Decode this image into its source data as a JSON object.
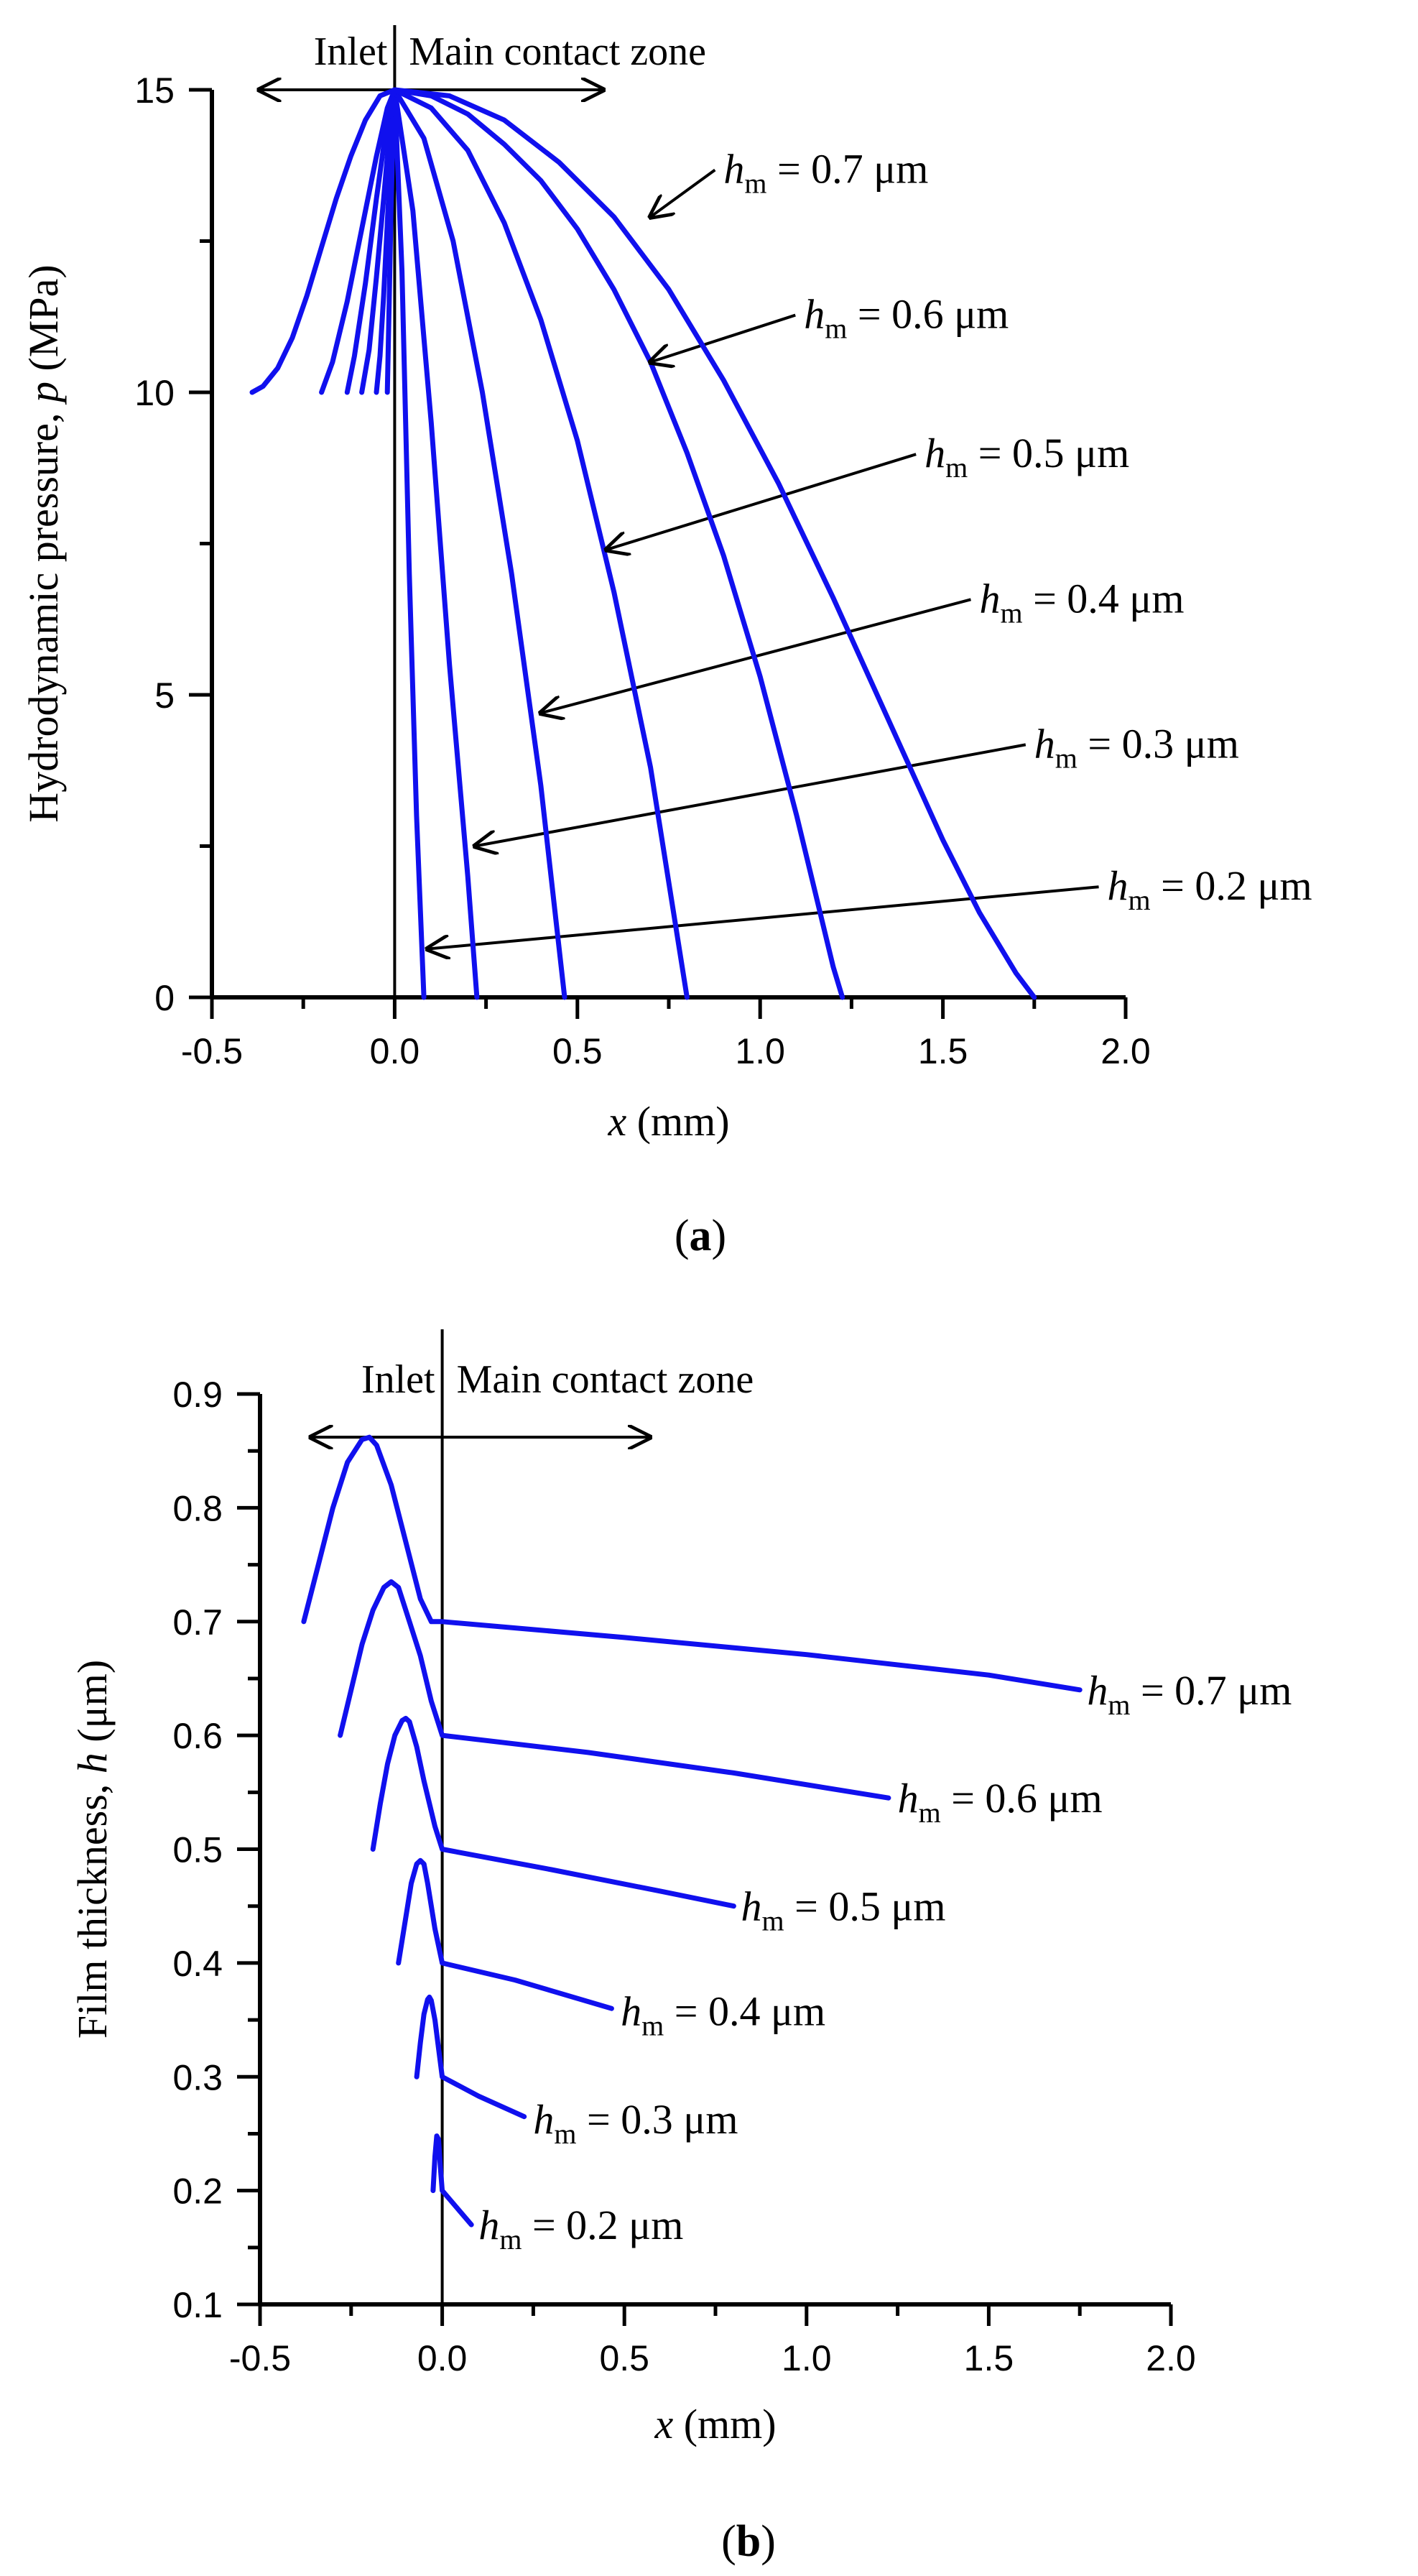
{
  "colors": {
    "series": "#1010ee",
    "axis": "#000000",
    "background": "#ffffff"
  },
  "chart_data": [
    {
      "id": "a",
      "type": "line",
      "panel_label_open": "(",
      "panel_label_letter": "a",
      "panel_label_close": ")",
      "xlabel_var": "x",
      "xlabel_unit": " (mm)",
      "ylabel_pre": "Hydrodynamic pressure, ",
      "ylabel_var": "p",
      "ylabel_unit": " (MPa)",
      "xlim": [
        -0.5,
        2.0
      ],
      "ylim": [
        0,
        15
      ],
      "xticks": [
        -0.5,
        0.0,
        0.5,
        1.0,
        1.5,
        2.0
      ],
      "xtick_labels": [
        "-0.5",
        "0.0",
        "0.5",
        "1.0",
        "1.5",
        "2.0"
      ],
      "xminor": [
        -0.25,
        0.25,
        0.75,
        1.25,
        1.75
      ],
      "yticks": [
        0,
        5,
        10,
        15
      ],
      "ytick_labels": [
        "0",
        "5",
        "10",
        "15"
      ],
      "yminor": [
        2.5,
        7.5,
        12.5
      ],
      "zone_left": "Inlet",
      "zone_right": "Main contact zone",
      "zone_arrow_x": [
        -0.37,
        0.57
      ],
      "zone_arrow_y": 15.0,
      "series": [
        {
          "name": "hm = 0.2 μm",
          "label_var": "h",
          "label_sub": "m",
          "label_rest": " = 0.2 μm",
          "x": [
            -0.02,
            -0.015,
            -0.01,
            -0.005,
            0.0,
            0.02,
            0.04,
            0.06,
            0.08
          ],
          "y": [
            10.0,
            11.5,
            13.0,
            14.2,
            15.0,
            12.0,
            7.0,
            3.0,
            0.0
          ],
          "label_at": [
            1.95,
            1.85
          ],
          "arrow_tip": [
            0.09,
            0.8
          ]
        },
        {
          "name": "hm = 0.3 μm",
          "label_var": "h",
          "label_sub": "m",
          "label_rest": " = 0.3 μm",
          "x": [
            -0.05,
            -0.04,
            -0.03,
            -0.02,
            -0.01,
            0.0,
            0.05,
            0.1,
            0.15,
            0.2,
            0.225
          ],
          "y": [
            10.0,
            10.6,
            11.6,
            12.8,
            14.0,
            15.0,
            13.0,
            9.5,
            5.5,
            2.0,
            0.0
          ],
          "label_at": [
            1.75,
            4.2
          ],
          "arrow_tip": [
            0.22,
            2.5
          ]
        },
        {
          "name": "hm = 0.4 μm",
          "label_var": "h",
          "label_sub": "m",
          "label_rest": " = 0.4 μm",
          "x": [
            -0.09,
            -0.07,
            -0.05,
            -0.03,
            -0.01,
            0.0,
            0.08,
            0.16,
            0.24,
            0.32,
            0.4,
            0.465
          ],
          "y": [
            10.0,
            10.7,
            11.9,
            13.2,
            14.6,
            15.0,
            14.2,
            12.5,
            10.0,
            7.0,
            3.5,
            0.0
          ],
          "label_at": [
            1.6,
            6.6
          ],
          "arrow_tip": [
            0.4,
            4.7
          ]
        },
        {
          "name": "hm = 0.5 μm",
          "label_var": "h",
          "label_sub": "m",
          "label_rest": " = 0.5 μm",
          "x": [
            -0.13,
            -0.11,
            -0.08,
            -0.05,
            -0.02,
            0.0,
            0.1,
            0.2,
            0.3,
            0.4,
            0.5,
            0.6,
            0.7,
            0.8
          ],
          "y": [
            10.0,
            10.6,
            11.8,
            13.2,
            14.5,
            15.0,
            14.7,
            14.0,
            12.8,
            11.2,
            9.2,
            6.7,
            3.8,
            0.0
          ],
          "label_at": [
            1.45,
            9.0
          ],
          "arrow_tip": [
            0.58,
            7.4
          ]
        },
        {
          "name": "hm = 0.6 μm",
          "label_var": "h",
          "label_sub": "m",
          "label_rest": " = 0.6 μm",
          "x": [
            -0.2,
            -0.17,
            -0.13,
            -0.09,
            -0.05,
            -0.02,
            0.0,
            0.1,
            0.2,
            0.3,
            0.4,
            0.5,
            0.6,
            0.7,
            0.8,
            0.9,
            1.0,
            1.1,
            1.2,
            1.225
          ],
          "y": [
            10.0,
            10.5,
            11.5,
            12.7,
            13.9,
            14.7,
            15.0,
            14.9,
            14.6,
            14.1,
            13.5,
            12.7,
            11.7,
            10.5,
            9.0,
            7.3,
            5.3,
            3.0,
            0.5,
            0.0
          ],
          "label_at": [
            1.12,
            11.3
          ],
          "arrow_tip": [
            0.7,
            10.5
          ]
        },
        {
          "name": "hm = 0.7 μm",
          "label_var": "h",
          "label_sub": "m",
          "label_rest": " = 0.7 μm",
          "x": [
            -0.39,
            -0.36,
            -0.32,
            -0.28,
            -0.24,
            -0.2,
            -0.16,
            -0.12,
            -0.08,
            -0.04,
            0.0,
            0.15,
            0.3,
            0.45,
            0.6,
            0.75,
            0.9,
            1.05,
            1.2,
            1.35,
            1.5,
            1.6,
            1.7,
            1.75
          ],
          "y": [
            10.0,
            10.1,
            10.4,
            10.9,
            11.6,
            12.4,
            13.2,
            13.9,
            14.5,
            14.9,
            15.0,
            14.9,
            14.5,
            13.8,
            12.9,
            11.7,
            10.2,
            8.5,
            6.6,
            4.6,
            2.6,
            1.4,
            0.4,
            0.0
          ],
          "label_at": [
            0.9,
            13.7
          ],
          "arrow_tip": [
            0.7,
            12.9
          ]
        }
      ]
    },
    {
      "id": "b",
      "type": "line",
      "panel_label_open": "(",
      "panel_label_letter": "b",
      "panel_label_close": ")",
      "xlabel_var": "x",
      "xlabel_unit": " (mm)",
      "ylabel_pre": "Film thickness, ",
      "ylabel_var": "h",
      "ylabel_unit": " (μm)",
      "xlim": [
        -0.5,
        2.0
      ],
      "ylim": [
        0.1,
        0.9
      ],
      "xticks": [
        -0.5,
        0.0,
        0.5,
        1.0,
        1.5,
        2.0
      ],
      "xtick_labels": [
        "-0.5",
        "0.0",
        "0.5",
        "1.0",
        "1.5",
        "2.0"
      ],
      "xminor": [
        -0.25,
        0.25,
        0.75,
        1.25,
        1.75
      ],
      "yticks": [
        0.1,
        0.2,
        0.3,
        0.4,
        0.5,
        0.6,
        0.7,
        0.8,
        0.9
      ],
      "ytick_labels": [
        "0.1",
        "0.2",
        "0.3",
        "0.4",
        "0.5",
        "0.6",
        "0.7",
        "0.8",
        "0.9"
      ],
      "yminor": [
        0.15,
        0.25,
        0.35,
        0.45,
        0.55,
        0.65,
        0.75,
        0.85
      ],
      "zone_left": "Inlet",
      "zone_right": "Main contact zone",
      "zone_arrow_x": [
        -0.36,
        0.57
      ],
      "zone_arrow_y": 0.862,
      "series": [
        {
          "name": "hm = 0.7 μm",
          "label_var": "h",
          "label_sub": "m",
          "label_rest": " = 0.7 μm",
          "x": [
            -0.38,
            -0.34,
            -0.3,
            -0.26,
            -0.22,
            -0.2,
            -0.18,
            -0.14,
            -0.1,
            -0.06,
            -0.03,
            0.0,
            0.5,
            1.0,
            1.5,
            1.75
          ],
          "y": [
            0.7,
            0.75,
            0.8,
            0.84,
            0.86,
            0.862,
            0.855,
            0.82,
            0.77,
            0.72,
            0.7,
            0.7,
            0.686,
            0.671,
            0.653,
            0.64
          ],
          "label_at": [
            1.77,
            0.64
          ]
        },
        {
          "name": "hm = 0.6 μm",
          "label_var": "h",
          "label_sub": "m",
          "label_rest": " = 0.6 μm",
          "x": [
            -0.28,
            -0.25,
            -0.22,
            -0.19,
            -0.16,
            -0.14,
            -0.12,
            -0.09,
            -0.06,
            -0.03,
            0.0,
            0.4,
            0.8,
            1.225
          ],
          "y": [
            0.6,
            0.64,
            0.68,
            0.71,
            0.73,
            0.735,
            0.73,
            0.7,
            0.67,
            0.63,
            0.6,
            0.585,
            0.567,
            0.545
          ],
          "label_at": [
            1.25,
            0.545
          ]
        },
        {
          "name": "hm = 0.5 μm",
          "label_var": "h",
          "label_sub": "m",
          "label_rest": " = 0.5 μm",
          "x": [
            -0.19,
            -0.17,
            -0.15,
            -0.13,
            -0.11,
            -0.1,
            -0.09,
            -0.07,
            -0.05,
            -0.02,
            0.0,
            0.3,
            0.6,
            0.8
          ],
          "y": [
            0.5,
            0.54,
            0.575,
            0.6,
            0.613,
            0.615,
            0.612,
            0.59,
            0.56,
            0.52,
            0.5,
            0.482,
            0.463,
            0.45
          ],
          "label_at": [
            0.82,
            0.45
          ]
        },
        {
          "name": "hm = 0.4 μm",
          "label_var": "h",
          "label_sub": "m",
          "label_rest": " = 0.4 μm",
          "x": [
            -0.12,
            -0.1,
            -0.085,
            -0.07,
            -0.06,
            -0.05,
            -0.04,
            -0.03,
            -0.02,
            0.0,
            0.2,
            0.465
          ],
          "y": [
            0.4,
            0.44,
            0.47,
            0.487,
            0.49,
            0.487,
            0.47,
            0.45,
            0.43,
            0.4,
            0.385,
            0.36
          ],
          "label_at": [
            0.49,
            0.358
          ]
        },
        {
          "name": "hm = 0.3 μm",
          "label_var": "h",
          "label_sub": "m",
          "label_rest": " = 0.3 μm",
          "x": [
            -0.07,
            -0.06,
            -0.05,
            -0.04,
            -0.035,
            -0.03,
            -0.02,
            -0.01,
            0.0,
            0.1,
            0.225
          ],
          "y": [
            0.3,
            0.33,
            0.355,
            0.368,
            0.37,
            0.367,
            0.35,
            0.325,
            0.3,
            0.283,
            0.265
          ],
          "label_at": [
            0.25,
            0.263
          ]
        },
        {
          "name": "hm = 0.2 μm",
          "label_var": "h",
          "label_sub": "m",
          "label_rest": " = 0.2 μm",
          "x": [
            -0.025,
            -0.02,
            -0.015,
            -0.01,
            -0.005,
            0.0,
            0.04,
            0.08
          ],
          "y": [
            0.2,
            0.23,
            0.248,
            0.245,
            0.22,
            0.2,
            0.185,
            0.17
          ],
          "label_at": [
            0.1,
            0.17
          ]
        }
      ]
    }
  ]
}
